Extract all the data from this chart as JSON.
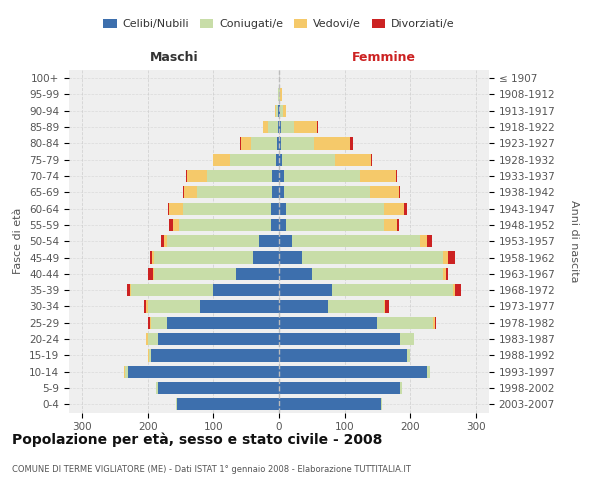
{
  "age_groups": [
    "0-4",
    "5-9",
    "10-14",
    "15-19",
    "20-24",
    "25-29",
    "30-34",
    "35-39",
    "40-44",
    "45-49",
    "50-54",
    "55-59",
    "60-64",
    "65-69",
    "70-74",
    "75-79",
    "80-84",
    "85-89",
    "90-94",
    "95-99",
    "100+"
  ],
  "birth_years": [
    "2003-2007",
    "1998-2002",
    "1993-1997",
    "1988-1992",
    "1983-1987",
    "1978-1982",
    "1973-1977",
    "1968-1972",
    "1963-1967",
    "1958-1962",
    "1953-1957",
    "1948-1952",
    "1943-1947",
    "1938-1942",
    "1933-1937",
    "1928-1932",
    "1923-1927",
    "1918-1922",
    "1913-1917",
    "1908-1912",
    "≤ 1907"
  ],
  "males": {
    "celibi": [
      155,
      185,
      230,
      195,
      185,
      170,
      120,
      100,
      65,
      40,
      30,
      12,
      12,
      10,
      10,
      5,
      3,
      2,
      1,
      0,
      0
    ],
    "coniugati": [
      2,
      3,
      5,
      3,
      15,
      25,
      80,
      125,
      125,
      150,
      140,
      140,
      135,
      115,
      100,
      70,
      40,
      15,
      3,
      1,
      0
    ],
    "vedovi": [
      0,
      0,
      1,
      1,
      2,
      2,
      2,
      2,
      2,
      3,
      5,
      10,
      20,
      20,
      30,
      25,
      15,
      8,
      2,
      0,
      0
    ],
    "divorziati": [
      0,
      0,
      0,
      0,
      1,
      2,
      3,
      5,
      8,
      3,
      5,
      5,
      2,
      1,
      1,
      0,
      1,
      0,
      0,
      0,
      0
    ]
  },
  "females": {
    "nubili": [
      155,
      185,
      225,
      195,
      185,
      150,
      75,
      80,
      50,
      35,
      20,
      10,
      10,
      8,
      8,
      5,
      3,
      3,
      1,
      0,
      0
    ],
    "coniugate": [
      2,
      2,
      5,
      5,
      20,
      85,
      85,
      185,
      200,
      215,
      195,
      150,
      150,
      130,
      115,
      80,
      50,
      20,
      5,
      2,
      0
    ],
    "vedove": [
      0,
      0,
      0,
      0,
      1,
      2,
      2,
      3,
      5,
      8,
      10,
      20,
      30,
      45,
      55,
      55,
      55,
      35,
      5,
      2,
      0
    ],
    "divorziate": [
      0,
      0,
      0,
      0,
      0,
      2,
      5,
      10,
      3,
      10,
      8,
      3,
      5,
      2,
      2,
      2,
      5,
      2,
      0,
      0,
      0
    ]
  },
  "colors": {
    "celibi": "#3D6FAD",
    "coniugati": "#C8DDA8",
    "vedovi": "#F5C96A",
    "divorziati": "#CC2222"
  },
  "xlim": 320,
  "title": "Popolazione per età, sesso e stato civile - 2008",
  "subtitle": "COMUNE DI TERME VIGLIATORE (ME) - Dati ISTAT 1° gennaio 2008 - Elaborazione TUTTITALIA.IT",
  "ylabel_left": "Fasce di età",
  "ylabel_right": "Anni di nascita",
  "xlabel_male": "Maschi",
  "xlabel_female": "Femmine",
  "legend_labels": [
    "Celibi/Nubili",
    "Coniugati/e",
    "Vedovi/e",
    "Divorziati/e"
  ],
  "bg_color": "#EFEFEF",
  "grid_color": "#CCCCCC"
}
